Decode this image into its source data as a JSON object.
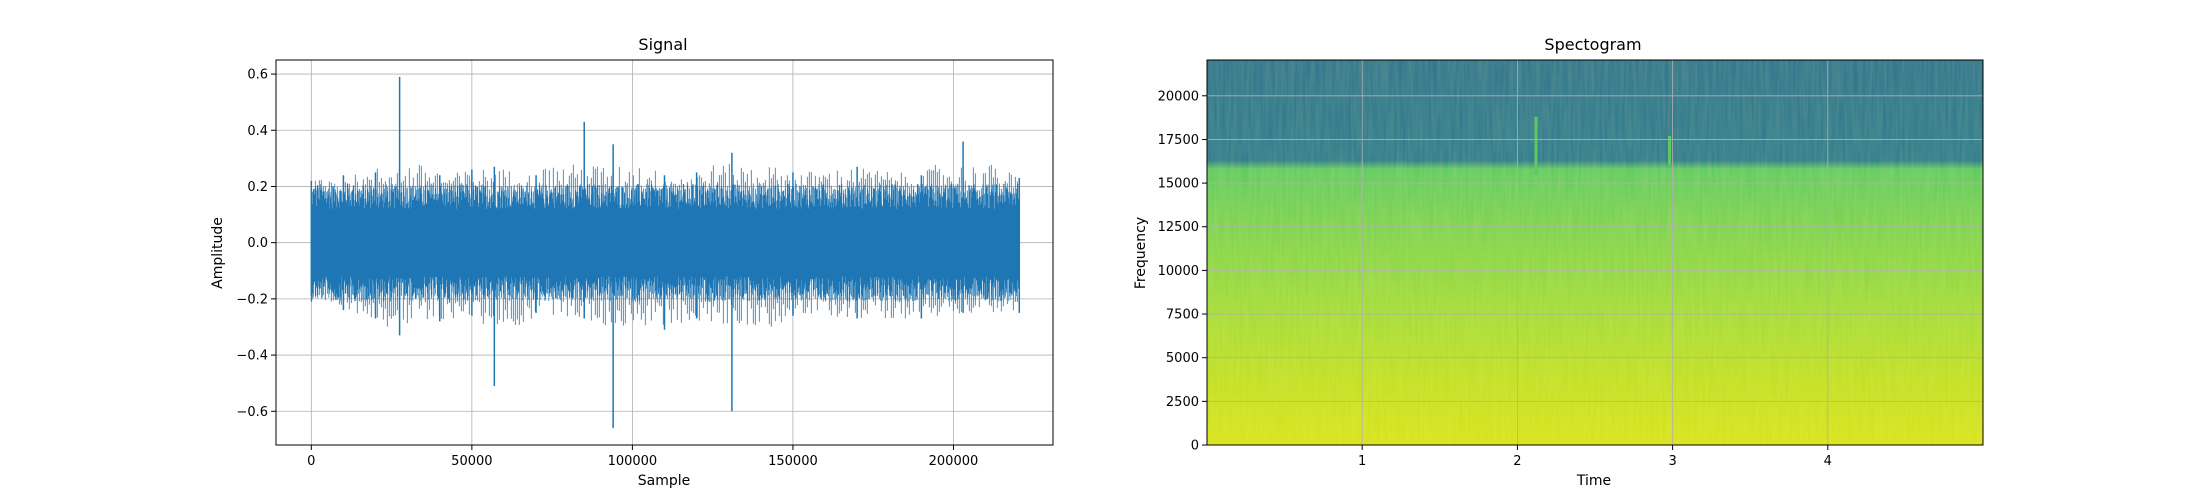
{
  "chart_data": [
    {
      "type": "line",
      "title": "Signal",
      "xlabel": "Sample",
      "ylabel": "Amplitude",
      "xlim": [
        -11000,
        231000
      ],
      "ylim": [
        -0.72,
        0.65
      ],
      "x_ticks": [
        0,
        50000,
        100000,
        150000,
        200000
      ],
      "x_tick_labels": [
        "0",
        "50000",
        "100000",
        "150000",
        "200000"
      ],
      "y_ticks": [
        -0.6,
        -0.4,
        -0.2,
        0.0,
        0.2,
        0.4,
        0.6
      ],
      "y_tick_labels": [
        "−0.6",
        "−0.4",
        "−0.2",
        "0.0",
        "0.2",
        "0.4",
        "0.6"
      ],
      "grid": true,
      "color": "#1f77b4",
      "sample_range": [
        0,
        220500
      ],
      "envelope": [
        {
          "x": 0,
          "max": 0.22,
          "min": -0.19
        },
        {
          "x": 10000,
          "max": 0.24,
          "min": -0.24
        },
        {
          "x": 20000,
          "max": 0.25,
          "min": -0.27
        },
        {
          "x": 27500,
          "max": 0.59,
          "min": -0.33
        },
        {
          "x": 40000,
          "max": 0.24,
          "min": -0.28
        },
        {
          "x": 50000,
          "max": 0.26,
          "min": -0.26
        },
        {
          "x": 57000,
          "max": 0.27,
          "min": -0.51
        },
        {
          "x": 70000,
          "max": 0.24,
          "min": -0.25
        },
        {
          "x": 85000,
          "max": 0.43,
          "min": -0.27
        },
        {
          "x": 94000,
          "max": 0.35,
          "min": -0.66
        },
        {
          "x": 110000,
          "max": 0.24,
          "min": -0.31
        },
        {
          "x": 120000,
          "max": 0.25,
          "min": -0.27
        },
        {
          "x": 131000,
          "max": 0.32,
          "min": -0.6
        },
        {
          "x": 150000,
          "max": 0.25,
          "min": -0.26
        },
        {
          "x": 170000,
          "max": 0.27,
          "min": -0.27
        },
        {
          "x": 190000,
          "max": 0.24,
          "min": -0.27
        },
        {
          "x": 203000,
          "max": 0.36,
          "min": -0.25
        },
        {
          "x": 220500,
          "max": 0.23,
          "min": -0.25
        }
      ]
    },
    {
      "type": "heatmap",
      "title": "Spectogram",
      "xlabel": "Time",
      "ylabel": "Frequency",
      "xlim": [
        0,
        5.0
      ],
      "ylim": [
        0,
        22050
      ],
      "x_ticks": [
        1,
        2,
        3,
        4
      ],
      "x_tick_labels": [
        "1",
        "2",
        "3",
        "4"
      ],
      "y_ticks": [
        0,
        2500,
        5000,
        7500,
        10000,
        12500,
        15000,
        17500,
        20000
      ],
      "y_tick_labels": [
        "0",
        "2500",
        "5000",
        "7500",
        "10000",
        "12500",
        "15000",
        "17500",
        "20000"
      ],
      "grid": true,
      "colormap": "viridis",
      "cutoff_frequency": 16000,
      "color_stops": [
        {
          "freq": 0,
          "color": "#d8e219"
        },
        {
          "freq": 3500,
          "color": "#c2df23"
        },
        {
          "freq": 8000,
          "color": "#9fda3a"
        },
        {
          "freq": 12500,
          "color": "#7ad151"
        },
        {
          "freq": 15800,
          "color": "#5ec962"
        },
        {
          "freq": 16300,
          "color": "#2a788e"
        },
        {
          "freq": 22050,
          "color": "#2c728e"
        }
      ],
      "features": [
        {
          "time": 2.12,
          "freq_low": 15500,
          "freq_high": 18800
        },
        {
          "time": 2.98,
          "freq_low": 16000,
          "freq_high": 17700
        }
      ]
    }
  ]
}
